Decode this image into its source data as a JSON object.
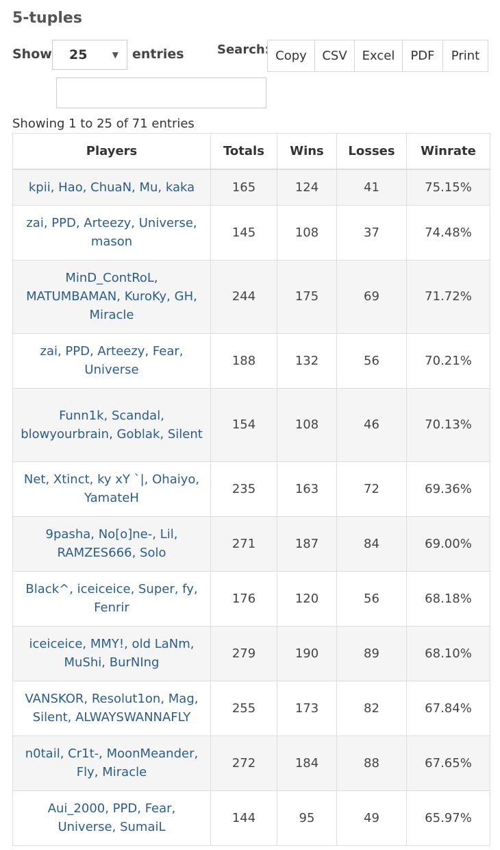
{
  "page": {
    "title": "5-tuples"
  },
  "controls": {
    "show_label": "Show",
    "page_length": "25",
    "entries_label": "entries",
    "search_label": "Search:",
    "search_value": ""
  },
  "buttons": {
    "copy": "Copy",
    "csv": "CSV",
    "excel": "Excel",
    "pdf": "PDF",
    "print": "Print"
  },
  "info": "Showing 1 to 25 of 71 entries",
  "table": {
    "headers": {
      "players": "Players",
      "totals": "Totals",
      "wins": "Wins",
      "losses": "Losses",
      "winrate": "Winrate"
    },
    "rows": [
      {
        "players": "kpii, Hao, ChuaN, Mu, kaka",
        "totals": "165",
        "wins": "124",
        "losses": "41",
        "winrate": "75.15%"
      },
      {
        "players": "zai, PPD, Arteezy, Universe, mason",
        "totals": "145",
        "wins": "108",
        "losses": "37",
        "winrate": "74.48%"
      },
      {
        "players": "MinD_ContRoL, MATUMBAMAN, KuroKy, GH, Miracle",
        "totals": "244",
        "wins": "175",
        "losses": "69",
        "winrate": "71.72%"
      },
      {
        "players": "zai, PPD, Arteezy, Fear, Universe",
        "totals": "188",
        "wins": "132",
        "losses": "56",
        "winrate": "70.21%"
      },
      {
        "players": "Funn1k, Scandal, blowyourbrain, Goblak, Silent",
        "totals": "154",
        "wins": "108",
        "losses": "46",
        "winrate": "70.13%"
      },
      {
        "players": "Net, Xtinct, ky xY `|, Ohaiyo, YamateH",
        "totals": "235",
        "wins": "163",
        "losses": "72",
        "winrate": "69.36%"
      },
      {
        "players": "9pasha, No[o]ne-, Lil, RAMZES666, Solo",
        "totals": "271",
        "wins": "187",
        "losses": "84",
        "winrate": "69.00%"
      },
      {
        "players": "Black^, iceiceice, Super, fy, Fenrir",
        "totals": "176",
        "wins": "120",
        "losses": "56",
        "winrate": "68.18%"
      },
      {
        "players": "iceiceice, MMY!, old LaNm, MuShi, BurNIng",
        "totals": "279",
        "wins": "190",
        "losses": "89",
        "winrate": "68.10%"
      },
      {
        "players": "VANSKOR, Resolut1on, Mag, Silent, ALWAYSWANNAFLY",
        "totals": "255",
        "wins": "173",
        "losses": "82",
        "winrate": "67.84%"
      },
      {
        "players": "n0tail, Cr1t-, MoonMeander, Fly, Miracle",
        "totals": "272",
        "wins": "184",
        "losses": "88",
        "winrate": "67.65%"
      },
      {
        "players": "Aui_2000, PPD, Fear, Universe, SumaiL",
        "totals": "144",
        "wins": "95",
        "losses": "49",
        "winrate": "65.97%"
      }
    ]
  }
}
